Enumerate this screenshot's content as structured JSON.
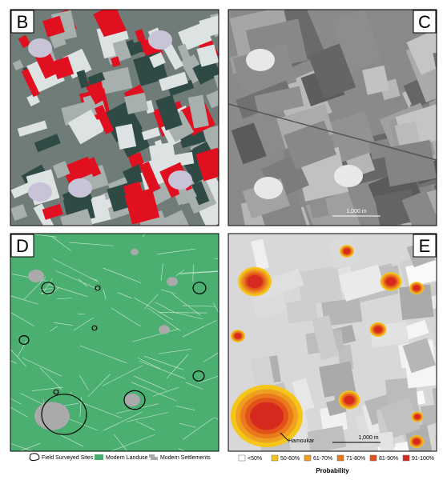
{
  "panels": [
    {
      "label": "B"
    },
    {
      "label": "C",
      "scale_bar": "1,000 m"
    },
    {
      "label": "D"
    },
    {
      "label": "E",
      "scale_bar": "1,000 m",
      "site_label": "Hamoukar"
    }
  ],
  "legend_d": [
    "Field Surveyed Sites",
    "Modern Landuse",
    "Modern Settlements"
  ],
  "legend_e": {
    "title": "Probability",
    "classes": [
      {
        "label": "<50%",
        "color": "#ffffff"
      },
      {
        "label": "50-60%",
        "color": "#f5c518"
      },
      {
        "label": "61-70%",
        "color": "#f0a020"
      },
      {
        "label": "71-80%",
        "color": "#ea7a1c"
      },
      {
        "label": "81-90%",
        "color": "#e2531a"
      },
      {
        "label": "91-100%",
        "color": "#d62a1e"
      }
    ]
  }
}
